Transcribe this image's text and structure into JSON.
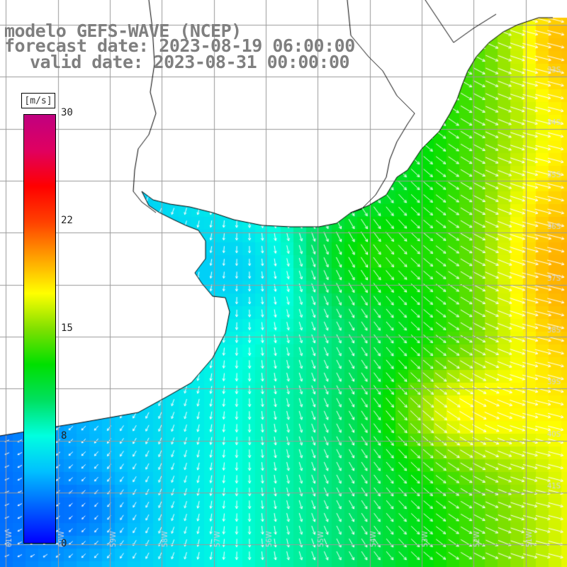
{
  "title": {
    "model": "modelo GEFS-WAVE (NCEP)",
    "forecast": "forecast date: 2023-08-19 06:00:00",
    "valid": "valid date: 2023-08-31 00:00:00"
  },
  "colorbar": {
    "unit": "[m/s]",
    "ticks": [
      "30",
      "22",
      "15",
      "8",
      "0"
    ],
    "tick_values": [
      30,
      22,
      15,
      8,
      0
    ],
    "range": [
      0,
      30
    ],
    "colors": [
      "#0000ff",
      "#0060ff",
      "#00c0ff",
      "#00ffe0",
      "#00e060",
      "#00e000",
      "#80e000",
      "#ffff00",
      "#ffa000",
      "#ff4000",
      "#ff0000",
      "#e00060",
      "#c00080"
    ]
  },
  "map": {
    "lat_labels": [
      "33S",
      "34S",
      "35S",
      "36S",
      "37S",
      "38S",
      "39S",
      "40S",
      "41S"
    ],
    "lon_labels": [
      "61W",
      "60W",
      "59W",
      "58W",
      "57W",
      "56W",
      "55W",
      "54W",
      "53W",
      "52W",
      "51W"
    ],
    "land_color": "#ffffff",
    "grid_color": "#9a9a9a",
    "coast_color": "#000000",
    "arrow_color": "#ffffff"
  }
}
